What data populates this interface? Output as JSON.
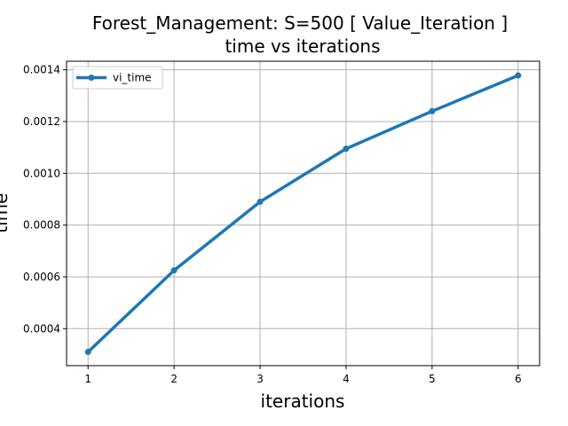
{
  "chart_data": {
    "type": "line",
    "title": "Forest_Management: S=500 [ Value_Iteration ]",
    "subtitle": "time vs iterations",
    "xlabel": "iterations",
    "ylabel": "time",
    "xlim": [
      0.75,
      6.25
    ],
    "ylim": [
      0.000257,
      0.001433
    ],
    "x_ticks": [
      1,
      2,
      3,
      4,
      5,
      6
    ],
    "y_ticks": [
      0.0004,
      0.0006,
      0.0008,
      0.001,
      0.0012,
      0.0014
    ],
    "y_tick_labels": [
      "0.0004",
      "0.0006",
      "0.0008",
      "0.0010",
      "0.0012",
      "0.0014"
    ],
    "grid": true,
    "legend_position": "top-left",
    "series": [
      {
        "name": "vi_time",
        "color": "#1f77b4",
        "x": [
          1,
          2,
          3,
          4,
          5,
          6
        ],
        "y": [
          0.00031,
          0.000625,
          0.00089,
          0.001095,
          0.00124,
          0.001378
        ]
      }
    ]
  }
}
